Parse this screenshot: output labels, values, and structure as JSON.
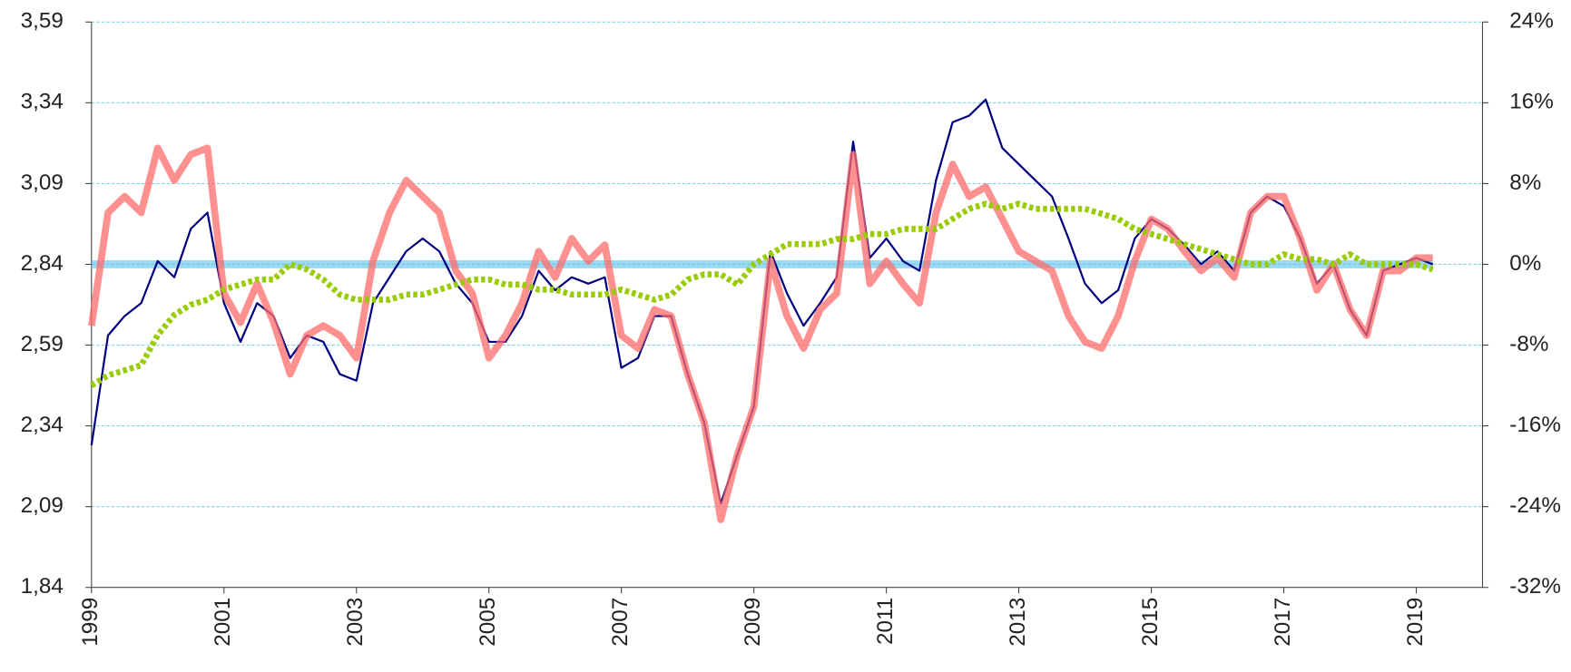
{
  "chart_data": {
    "type": "line",
    "x": [
      1999,
      1999.25,
      1999.5,
      1999.75,
      2000,
      2000.25,
      2000.5,
      2000.75,
      2001,
      2001.25,
      2001.5,
      2001.75,
      2002,
      2002.25,
      2002.5,
      2002.75,
      2003,
      2003.25,
      2003.5,
      2003.75,
      2004,
      2004.25,
      2004.5,
      2004.75,
      2005,
      2005.25,
      2005.5,
      2005.75,
      2006,
      2006.25,
      2006.5,
      2006.75,
      2007,
      2007.25,
      2007.5,
      2007.75,
      2008,
      2008.25,
      2008.5,
      2008.75,
      2009,
      2009.25,
      2009.5,
      2009.75,
      2010,
      2010.25,
      2010.5,
      2010.75,
      2011,
      2011.25,
      2011.5,
      2011.75,
      2012,
      2012.25,
      2012.5,
      2012.75,
      2013,
      2013.25,
      2013.5,
      2013.75,
      2014,
      2014.25,
      2014.5,
      2014.75,
      2015,
      2015.25,
      2015.5,
      2015.75,
      2016,
      2016.25,
      2016.5,
      2016.75,
      2017,
      2017.25,
      2017.5,
      2017.75,
      2018,
      2018.25,
      2018.5,
      2018.75,
      2019,
      2019.25
    ],
    "series": [
      {
        "color": "#000080",
        "axis": "y",
        "values": [
          2.28,
          2.62,
          2.68,
          2.72,
          2.85,
          2.8,
          2.95,
          3.0,
          2.72,
          2.6,
          2.72,
          2.68,
          2.55,
          2.62,
          2.6,
          2.5,
          2.48,
          2.72,
          2.8,
          2.88,
          2.92,
          2.88,
          2.78,
          2.72,
          2.6,
          2.6,
          2.68,
          2.82,
          2.76,
          2.8,
          2.78,
          2.8,
          2.52,
          2.55,
          2.68,
          2.68,
          2.5,
          2.35,
          2.1,
          2.25,
          2.4,
          2.88,
          2.75,
          2.65,
          2.72,
          2.8,
          3.22,
          2.86,
          2.92,
          2.85,
          2.82,
          3.1,
          3.28,
          3.3,
          3.35,
          3.2,
          3.15,
          3.1,
          3.05,
          2.92,
          2.78,
          2.72,
          2.76,
          2.92,
          2.98,
          2.95,
          2.9,
          2.84,
          2.88,
          2.82,
          3.0,
          3.05,
          3.02,
          2.92,
          2.78,
          2.84,
          2.7,
          2.62,
          2.82,
          2.84,
          2.86,
          2.84
        ]
      },
      {
        "color": "#ff6b6b",
        "axis": "y",
        "values": [
          2.65,
          3.0,
          3.05,
          3.0,
          3.2,
          3.1,
          3.18,
          3.2,
          2.75,
          2.66,
          2.78,
          2.66,
          2.5,
          2.62,
          2.65,
          2.62,
          2.55,
          2.85,
          3.0,
          3.1,
          3.05,
          3.0,
          2.82,
          2.75,
          2.55,
          2.62,
          2.72,
          2.88,
          2.8,
          2.92,
          2.85,
          2.9,
          2.62,
          2.58,
          2.7,
          2.68,
          2.5,
          2.35,
          2.05,
          2.25,
          2.4,
          2.85,
          2.68,
          2.58,
          2.7,
          2.75,
          3.18,
          2.78,
          2.85,
          2.78,
          2.72,
          3.0,
          3.15,
          3.05,
          3.08,
          2.98,
          2.88,
          2.85,
          2.82,
          2.68,
          2.6,
          2.58,
          2.68,
          2.85,
          2.98,
          2.95,
          2.88,
          2.82,
          2.86,
          2.8,
          3.0,
          3.05,
          3.05,
          2.92,
          2.76,
          2.84,
          2.7,
          2.62,
          2.82,
          2.82,
          2.86,
          2.86
        ]
      },
      {
        "color": "#99cc00",
        "axis": "y2",
        "values": [
          -12,
          -11,
          -10.5,
          -10,
          -7,
          -5,
          -4,
          -3.5,
          -2.5,
          -2,
          -1.5,
          -1.5,
          0,
          -0.5,
          -1.5,
          -3,
          -3.5,
          -3.5,
          -3.5,
          -3,
          -3,
          -2.5,
          -2,
          -1.5,
          -1.5,
          -2,
          -2,
          -2.5,
          -2.5,
          -3,
          -3,
          -3,
          -2.5,
          -3,
          -3.5,
          -3,
          -1.5,
          -1,
          -1,
          -2,
          0,
          1,
          2,
          2,
          2,
          2.5,
          2.5,
          3,
          3,
          3.5,
          3.5,
          3.5,
          4.5,
          5.5,
          6,
          5.5,
          6,
          5.5,
          5.5,
          5.5,
          5.5,
          5,
          4.5,
          3.5,
          3,
          2.5,
          2,
          1.5,
          1,
          0.5,
          0,
          0,
          1,
          0.5,
          0.5,
          0,
          1,
          0,
          0,
          0,
          0,
          -0.5
        ]
      }
    ],
    "reference_line": {
      "value": 2.84,
      "color": "#5bc0eb"
    },
    "xlim": [
      1999,
      2020
    ],
    "xticks": [
      1999,
      2001,
      2003,
      2005,
      2007,
      2009,
      2011,
      2013,
      2015,
      2017,
      2019
    ],
    "ylim": [
      1.84,
      3.59
    ],
    "yticks": [
      {
        "value": 1.84,
        "label": "1,84"
      },
      {
        "value": 2.09,
        "label": "2,09"
      },
      {
        "value": 2.34,
        "label": "2,34"
      },
      {
        "value": 2.59,
        "label": "2,59"
      },
      {
        "value": 2.84,
        "label": "2,84"
      },
      {
        "value": 3.09,
        "label": "3,09"
      },
      {
        "value": 3.34,
        "label": "3,34"
      },
      {
        "value": 3.59,
        "label": "3,59"
      }
    ],
    "y2lim": [
      -32,
      24
    ],
    "y2ticks": [
      {
        "value": -32,
        "label": "-32%"
      },
      {
        "value": -24,
        "label": "-24%"
      },
      {
        "value": -16,
        "label": "-16%"
      },
      {
        "value": -8,
        "label": "-8%"
      },
      {
        "value": 0,
        "label": "0%"
      },
      {
        "value": 8,
        "label": "8%"
      },
      {
        "value": 16,
        "label": "16%"
      },
      {
        "value": 24,
        "label": "24%"
      }
    ],
    "grid": true
  }
}
